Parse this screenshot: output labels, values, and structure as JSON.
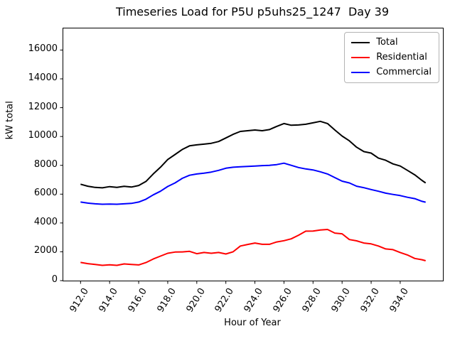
{
  "figure": {
    "background": "#ffffff"
  },
  "chart_data": {
    "type": "line",
    "title": "Timeseries Load for P5U p5uhs25_1247  Day 39",
    "xlabel": "Hour of Year",
    "ylabel": "kW total",
    "grid": false,
    "legend_position": "upper right",
    "xlim": [
      910.81,
      936.94
    ],
    "ylim": [
      0,
      17500
    ],
    "x_ticks": [
      912,
      914,
      916,
      918,
      920,
      922,
      924,
      926,
      928,
      930,
      932,
      934
    ],
    "x_tick_labels": [
      "912.0",
      "914.0",
      "916.0",
      "918.0",
      "920.0",
      "922.0",
      "924.0",
      "926.0",
      "928.0",
      "930.0",
      "932.0",
      "934.0"
    ],
    "y_ticks": [
      0,
      2000,
      4000,
      6000,
      8000,
      10000,
      12000,
      14000,
      16000
    ],
    "y_tick_labels": [
      "0",
      "2000",
      "4000",
      "6000",
      "8000",
      "10000",
      "12000",
      "14000",
      "16000"
    ],
    "x": [
      912.0,
      912.5,
      913.0,
      913.5,
      914.0,
      914.5,
      915.0,
      915.5,
      916.0,
      916.5,
      917.0,
      917.5,
      918.0,
      918.5,
      919.0,
      919.5,
      920.0,
      920.5,
      921.0,
      921.5,
      922.0,
      922.5,
      923.0,
      923.5,
      924.0,
      924.5,
      925.0,
      925.5,
      926.0,
      926.5,
      927.0,
      927.5,
      928.0,
      928.5,
      929.0,
      929.5,
      930.0,
      930.5,
      931.0,
      931.5,
      932.0,
      932.5,
      933.0,
      933.5,
      934.0,
      934.5,
      935.0,
      935.5,
      935.75
    ],
    "series": [
      {
        "name": "Total",
        "color": "#000000",
        "values": [
          6690,
          6550,
          6470,
          6440,
          6520,
          6470,
          6540,
          6490,
          6600,
          6880,
          7400,
          7870,
          8400,
          8750,
          9100,
          9350,
          9420,
          9470,
          9530,
          9650,
          9900,
          10150,
          10350,
          10400,
          10450,
          10400,
          10480,
          10700,
          10900,
          10780,
          10800,
          10850,
          10950,
          11050,
          10900,
          10450,
          10030,
          9700,
          9260,
          8950,
          8850,
          8500,
          8350,
          8100,
          7950,
          7650,
          7340,
          6950,
          6780
        ]
      },
      {
        "name": "Residential",
        "color": "#ff0000",
        "values": [
          1260,
          1180,
          1120,
          1060,
          1100,
          1060,
          1160,
          1120,
          1090,
          1250,
          1500,
          1700,
          1900,
          1980,
          1990,
          2030,
          1870,
          1950,
          1900,
          1950,
          1850,
          2000,
          2400,
          2510,
          2610,
          2520,
          2520,
          2680,
          2770,
          2900,
          3150,
          3430,
          3440,
          3510,
          3550,
          3300,
          3250,
          2850,
          2760,
          2610,
          2550,
          2400,
          2200,
          2150,
          1950,
          1780,
          1540,
          1450,
          1380
        ]
      },
      {
        "name": "Commercial",
        "color": "#0000ff",
        "values": [
          5450,
          5380,
          5330,
          5300,
          5310,
          5300,
          5330,
          5360,
          5450,
          5650,
          5950,
          6200,
          6530,
          6780,
          7100,
          7310,
          7400,
          7460,
          7530,
          7650,
          7800,
          7870,
          7900,
          7920,
          7950,
          7980,
          8000,
          8050,
          8150,
          8000,
          7850,
          7750,
          7680,
          7550,
          7400,
          7150,
          6900,
          6780,
          6550,
          6450,
          6320,
          6200,
          6070,
          5980,
          5900,
          5780,
          5690,
          5500,
          5440
        ]
      }
    ]
  }
}
